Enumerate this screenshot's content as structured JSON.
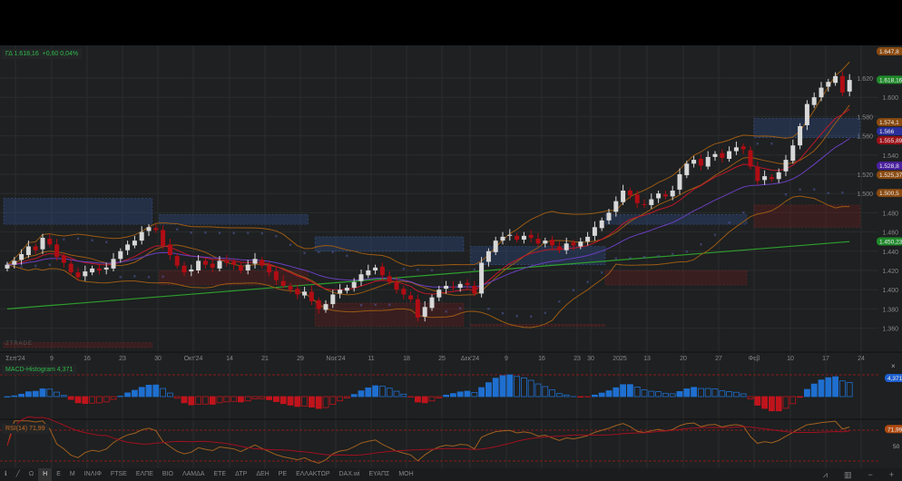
{
  "header": {
    "quote_symbol": "ΓΔ",
    "quote_price": "1.618,16",
    "quote_change": "+0,60",
    "quote_pct": "0,04%"
  },
  "watermark": "ZTRADE",
  "colors": {
    "bg": "#1e2021",
    "up": "#d8d8d8",
    "down": "#b00d14",
    "sma_long": "#2e9e2e",
    "bands": "#9a5a14",
    "ma_fast": "#c0182a",
    "ma_mid": "#6a3fc0",
    "sar": "#5560b0",
    "macd_pos": "#1f6fcf",
    "macd_neg": "#c0141c",
    "rsi": "#a06020"
  },
  "chart_data": {
    "type": "candlestick",
    "x_tick_labels": [
      "Σεπ'24",
      "9",
      "16",
      "23",
      "30",
      "Οκτ'24",
      "14",
      "21",
      "29",
      "Νοε'24",
      "11",
      "18",
      "25",
      "Δεκ'24",
      "9",
      "16",
      "23",
      "30",
      "2025",
      "13",
      "20",
      "27",
      "Φεβ",
      "10",
      "17",
      "24"
    ],
    "y_ticks": [
      "1.360",
      "1.380",
      "1.400",
      "1.420",
      "1.440",
      "1.460",
      "1.480",
      "1.500",
      "1.520",
      "1.540",
      "1.560",
      "1.580",
      "1.600",
      "1.620"
    ],
    "ylim": [
      1.345,
      1.66
    ],
    "close": [
      1.426,
      1.43,
      1.437,
      1.445,
      1.441,
      1.454,
      1.447,
      1.434,
      1.428,
      1.418,
      1.413,
      1.419,
      1.422,
      1.42,
      1.423,
      1.432,
      1.44,
      1.447,
      1.451,
      1.46,
      1.465,
      1.462,
      1.446,
      1.436,
      1.425,
      1.418,
      1.421,
      1.43,
      1.426,
      1.423,
      1.43,
      1.428,
      1.426,
      1.42,
      1.426,
      1.432,
      1.425,
      1.418,
      1.41,
      1.404,
      1.4,
      1.395,
      1.398,
      1.388,
      1.38,
      1.385,
      1.395,
      1.4,
      1.402,
      1.408,
      1.416,
      1.42,
      1.423,
      1.415,
      1.408,
      1.4,
      1.395,
      1.39,
      1.371,
      1.382,
      1.392,
      1.4,
      1.404,
      1.402,
      1.406,
      1.405,
      1.396,
      1.428,
      1.44,
      1.451,
      1.455,
      1.457,
      1.452,
      1.456,
      1.454,
      1.448,
      1.451,
      1.446,
      1.441,
      1.448,
      1.446,
      1.45,
      1.455,
      1.465,
      1.472,
      1.48,
      1.492,
      1.503,
      1.498,
      1.49,
      1.488,
      1.494,
      1.5,
      1.497,
      1.503,
      1.52,
      1.531,
      1.535,
      1.529,
      1.538,
      1.541,
      1.537,
      1.544,
      1.548,
      1.546,
      1.528,
      1.513,
      1.518,
      1.515,
      1.522,
      1.535,
      1.55,
      1.57,
      1.593,
      1.6,
      1.61,
      1.616,
      1.622,
      1.605,
      1.618
    ],
    "long_ma_range": [
      1.38,
      1.45
    ],
    "zones": [
      {
        "type": "supply",
        "from": 0,
        "to": 21,
        "low": 1.468,
        "high": 1.495
      },
      {
        "type": "supply",
        "from": 22,
        "to": 43,
        "low": 1.468,
        "high": 1.478
      },
      {
        "type": "supply",
        "from": 44,
        "to": 65,
        "low": 1.44,
        "high": 1.455
      },
      {
        "type": "supply",
        "from": 66,
        "to": 85,
        "low": 1.426,
        "high": 1.445
      },
      {
        "type": "supply",
        "from": 85,
        "to": 105,
        "low": 1.468,
        "high": 1.478
      },
      {
        "type": "supply",
        "from": 106,
        "to": 121,
        "low": 1.558,
        "high": 1.578
      },
      {
        "type": "demand",
        "from": 0,
        "to": 21,
        "low": 1.34,
        "high": 1.345
      },
      {
        "type": "demand",
        "from": 22,
        "to": 43,
        "low": 1.405,
        "high": 1.42
      },
      {
        "type": "demand",
        "from": 44,
        "to": 65,
        "low": 1.362,
        "high": 1.386
      },
      {
        "type": "demand",
        "from": 66,
        "to": 85,
        "low": 1.362,
        "high": 1.364
      },
      {
        "type": "demand",
        "from": 85,
        "to": 105,
        "low": 1.405,
        "high": 1.42
      },
      {
        "type": "demand",
        "from": 106,
        "to": 121,
        "low": 1.465,
        "high": 1.488
      }
    ],
    "price_badges": [
      {
        "text": "1.647,8",
        "price": 1.6478,
        "color": "#8a4a10"
      },
      {
        "text": "1.618,16",
        "price": 1.6182,
        "color": "#1f8a2a"
      },
      {
        "text": "1.574,1",
        "price": 1.5741,
        "color": "#8a4a10"
      },
      {
        "text": "1.566",
        "price": 1.5656,
        "color": "#2a2f9a"
      },
      {
        "text": "1.555,89",
        "price": 1.5559,
        "color": "#9a1018"
      },
      {
        "text": "1.528,8",
        "price": 1.5288,
        "color": "#4a20a0"
      },
      {
        "text": "1.525,37",
        "price": 1.5254,
        "color": "#8a4a10"
      },
      {
        "text": "1.500,5",
        "price": 1.5005,
        "color": "#8a4a10"
      },
      {
        "text": "1.450,23",
        "price": 1.4502,
        "color": "#1f8a2a"
      }
    ],
    "macd": {
      "label": "MACD-Histogram",
      "value": "4,371"
    },
    "rsi": {
      "label": "RSI(14)",
      "value": "71,99",
      "level_label": "50",
      "levels": [
        70,
        30
      ]
    }
  },
  "toolbar": {
    "items": [
      "Ω",
      "Η",
      "Ε",
      "Μ",
      "ΙΝΛΙΦ",
      "FTSE",
      "ΕΛΠΕ",
      "ΒΙΟ",
      "ΛΑΜΔΑ",
      "ΕΤΕ",
      "ΔΤΡ",
      "ΔΕΗ",
      "ΡΕ",
      "ΕΛΛΑΚΤΩΡ",
      "DAX.wi",
      "ΕΥΑΠΣ",
      "ΜΟΗ"
    ],
    "active": "Η"
  }
}
